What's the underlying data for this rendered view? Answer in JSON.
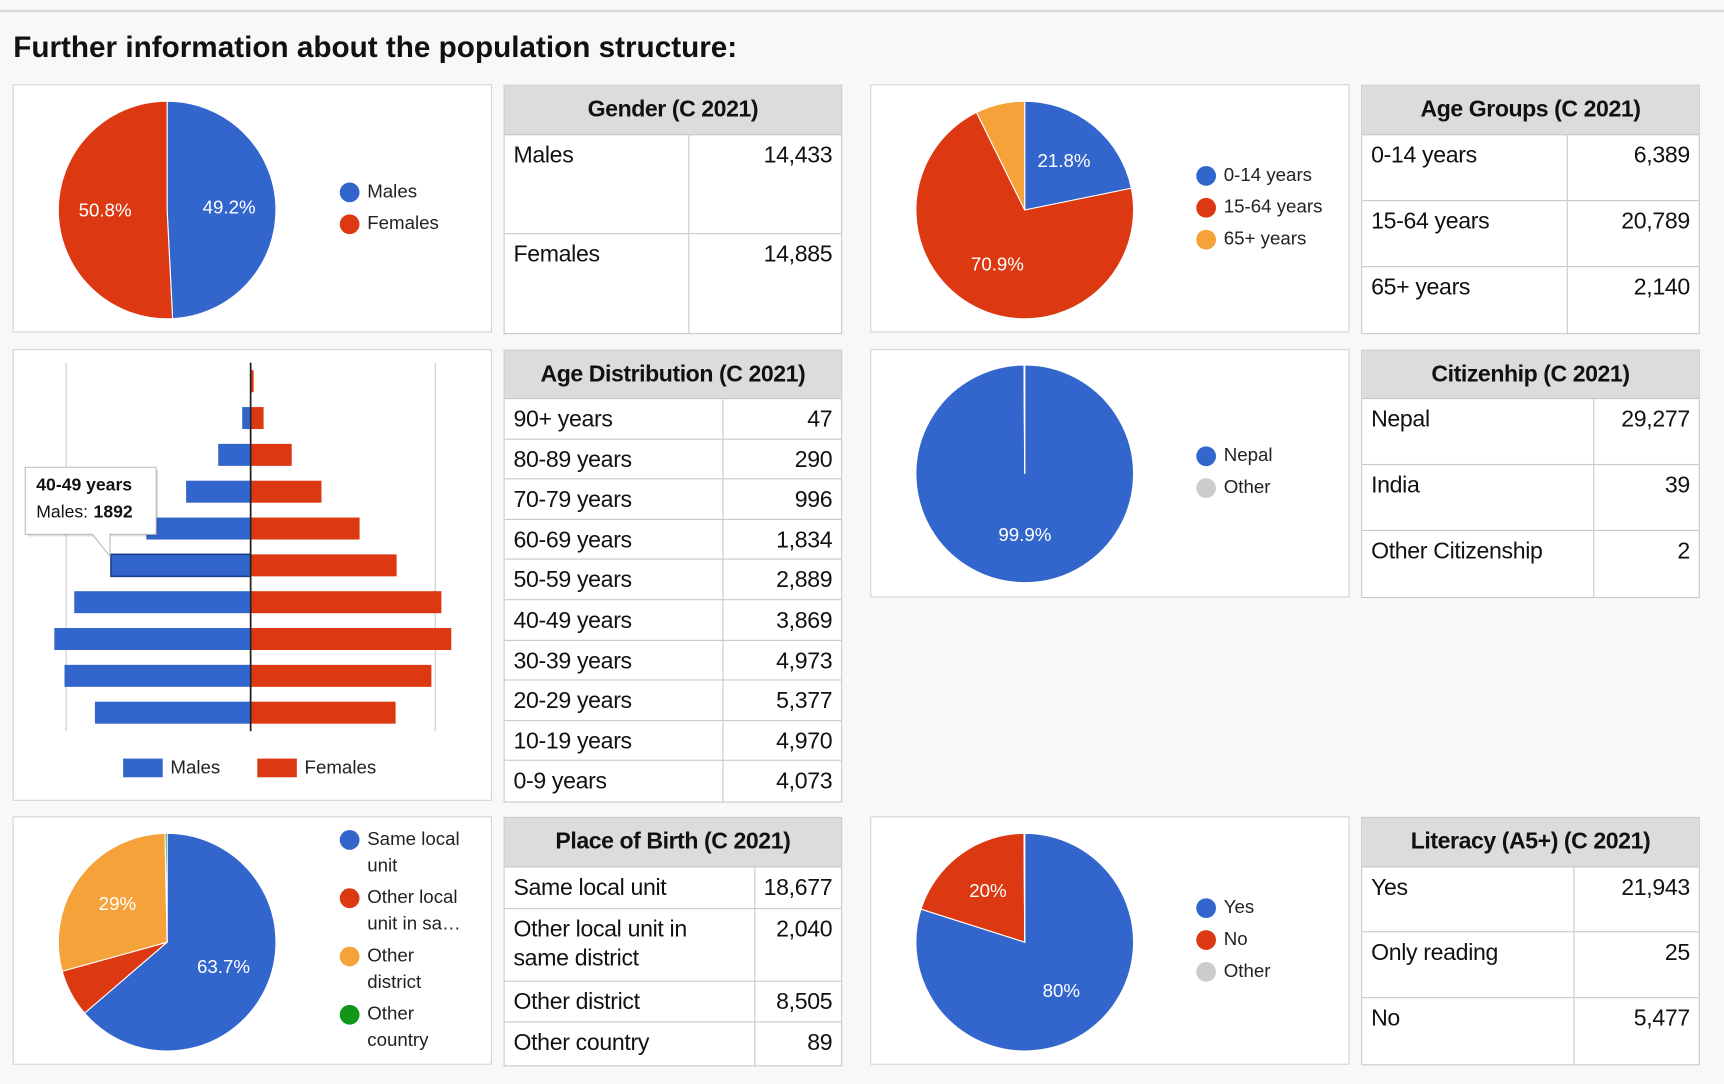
{
  "title": "Further information about the population structure:",
  "chart_data": [
    {
      "type": "pie",
      "categories": [
        "Males",
        "Females"
      ],
      "values": [
        49.2,
        50.8
      ],
      "value_labels": [
        "49.2%",
        "50.8%"
      ],
      "colors": [
        "#3366cc",
        "#dc3912"
      ]
    },
    {
      "type": "pie",
      "categories": [
        "0-14 years",
        "15-64 years",
        "65+ years"
      ],
      "values": [
        21.8,
        70.9,
        7.3
      ],
      "value_labels": [
        "21.8%",
        "70.9%",
        null
      ],
      "colors": [
        "#3366cc",
        "#dc3912",
        "#f6a23a"
      ]
    },
    {
      "type": "bar",
      "orientation": "horizontal",
      "categories": [
        "90+ years",
        "80-89 years",
        "70-79 years",
        "60-69 years",
        "50-59 years",
        "40-49 years",
        "30-39 years",
        "20-29 years",
        "10-19 years",
        "0-9 years"
      ],
      "series": [
        {
          "name": "Males",
          "color": "#3366cc",
          "values": [
            7,
            115,
            440,
            875,
            1414,
            1892,
            2390,
            2660,
            2522,
            2110
          ]
        },
        {
          "name": "Females",
          "color": "#dc3912",
          "values": [
            40,
            175,
            556,
            959,
            1475,
            1977,
            2583,
            2717,
            2448,
            1963
          ]
        }
      ],
      "xlim": [
        -2800,
        2800
      ],
      "xticks": [
        -2500,
        0,
        2500
      ],
      "grid": true,
      "tooltip": {
        "title": "40-49 years",
        "label": "Males:",
        "value": 1892
      }
    },
    {
      "type": "pie",
      "categories": [
        "Nepal",
        "Other"
      ],
      "values": [
        99.9,
        0.1
      ],
      "value_labels": [
        "99.9%",
        null
      ],
      "colors": [
        "#3366cc",
        "#cccccc"
      ]
    },
    {
      "type": "pie",
      "categories": [
        "Same local unit",
        "Other local unit in sa…",
        "Other district",
        "Other country"
      ],
      "values": [
        63.7,
        7.0,
        29,
        0.3
      ],
      "value_labels": [
        "63.7%",
        null,
        "29%",
        null
      ],
      "colors": [
        "#3366cc",
        "#dc3912",
        "#f6a23a",
        "#109618"
      ]
    },
    {
      "type": "pie",
      "categories": [
        "Yes",
        "No",
        "Other"
      ],
      "values": [
        79.9,
        20,
        0.1
      ],
      "value_labels": [
        "80%",
        "20%",
        null
      ],
      "colors": [
        "#3366cc",
        "#dc3912",
        "#cccccc"
      ]
    }
  ],
  "tables": [
    {
      "title": "Gender (C 2021)",
      "rows": [
        [
          "Males",
          "14,433"
        ],
        [
          "Females",
          "14,885"
        ]
      ]
    },
    {
      "title": "Age Groups (C 2021)",
      "rows": [
        [
          "0-14 years",
          "6,389"
        ],
        [
          "15-64 years",
          "20,789"
        ],
        [
          "65+ years",
          "2,140"
        ]
      ]
    },
    {
      "title": "Age Distribution (C 2021)",
      "rows": [
        [
          "90+ years",
          "47"
        ],
        [
          "80-89 years",
          "290"
        ],
        [
          "70-79 years",
          "996"
        ],
        [
          "60-69 years",
          "1,834"
        ],
        [
          "50-59 years",
          "2,889"
        ],
        [
          "40-49 years",
          "3,869"
        ],
        [
          "30-39 years",
          "4,973"
        ],
        [
          "20-29 years",
          "5,377"
        ],
        [
          "10-19 years",
          "4,970"
        ],
        [
          "0-9 years",
          "4,073"
        ]
      ]
    },
    {
      "title": "Citizenhip (C 2021)",
      "rows": [
        [
          "Nepal",
          "29,277"
        ],
        [
          "India",
          "39"
        ],
        [
          "Other Citizenship",
          "2"
        ]
      ]
    },
    {
      "title": "Place of Birth (C 2021)",
      "rows": [
        [
          "Same local unit",
          "18,677"
        ],
        [
          "Other local unit in same district",
          "2,040"
        ],
        [
          "Other district",
          "8,505"
        ],
        [
          "Other country",
          "89"
        ]
      ]
    },
    {
      "title": "Literacy (A5+) (C 2021)",
      "rows": [
        [
          "Yes",
          "21,943"
        ],
        [
          "Only reading",
          "25"
        ],
        [
          "No",
          "5,477"
        ]
      ]
    }
  ]
}
